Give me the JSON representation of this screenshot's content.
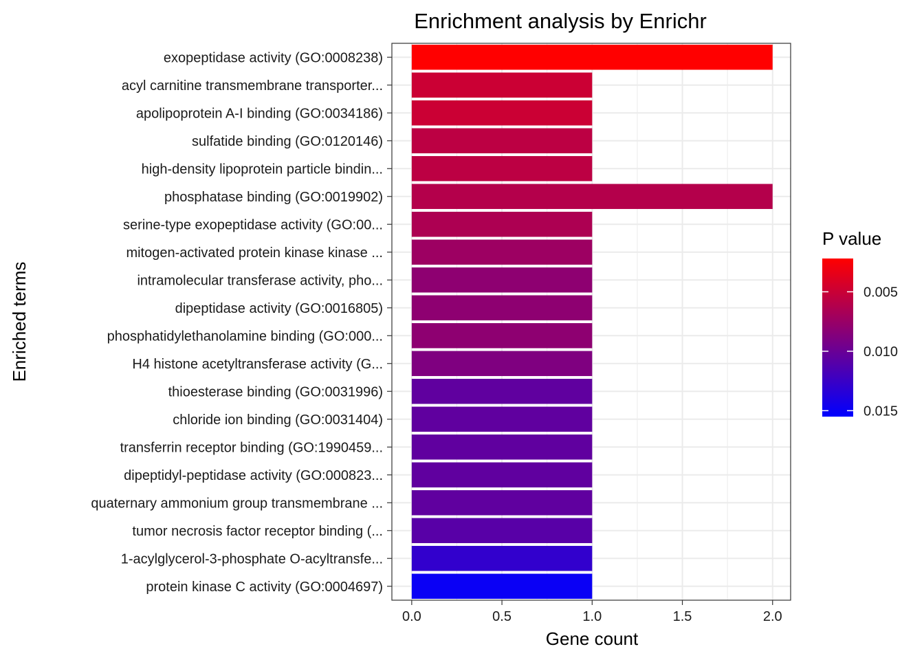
{
  "chart_data": {
    "type": "bar",
    "orientation": "horizontal",
    "title": "Enrichment analysis by Enrichr",
    "xlabel": "Gene count",
    "ylabel": "Enriched terms",
    "xlim": [
      -0.11,
      2.1
    ],
    "xticks": [
      0,
      0.5,
      1,
      1.5,
      2
    ],
    "xtick_labels": [
      "0.0",
      "0.5",
      "1.0",
      "1.5",
      "2.0"
    ],
    "grid": true,
    "categories": [
      "exopeptidase activity (GO:0008238)",
      "acyl carnitine transmembrane transporter...",
      "apolipoprotein A-I binding (GO:0034186)",
      "sulfatide binding (GO:0120146)",
      "high-density lipoprotein particle bindin...",
      "phosphatase binding (GO:0019902)",
      "serine-type exopeptidase activity (GO:00...",
      "mitogen-activated protein kinase kinase ...",
      "intramolecular transferase activity, pho...",
      "dipeptidase activity (GO:0016805)",
      "phosphatidylethanolamine binding (GO:000...",
      "H4 histone acetyltransferase activity (G...",
      "thioesterase binding (GO:0031996)",
      "chloride ion binding (GO:0031404)",
      "transferrin receptor binding (GO:1990459...",
      "dipeptidyl-peptidase activity (GO:000823...",
      "quaternary ammonium group transmembrane ...",
      "tumor necrosis factor receptor binding (...",
      "1-acylglycerol-3-phosphate O-acyltransfe...",
      "protein kinase C activity (GO:0004697)"
    ],
    "values": [
      2,
      1,
      1,
      1,
      1,
      2,
      1,
      1,
      1,
      1,
      1,
      1,
      1,
      1,
      1,
      1,
      1,
      1,
      1,
      1
    ],
    "pvalues": [
      0.0022,
      0.0049,
      0.0049,
      0.0057,
      0.0057,
      0.0061,
      0.0065,
      0.0073,
      0.0081,
      0.0081,
      0.0081,
      0.0089,
      0.0105,
      0.0105,
      0.0105,
      0.0105,
      0.0105,
      0.0109,
      0.0129,
      0.015
    ],
    "legend": {
      "title": "P value",
      "placement": "right",
      "breaks": [
        0.005,
        0.01,
        0.015
      ],
      "break_labels": [
        "0.005",
        "0.010",
        "0.015"
      ],
      "range": [
        0.0022,
        0.0155
      ],
      "low_color": "#ff0000",
      "high_color": "#0000ff"
    }
  }
}
